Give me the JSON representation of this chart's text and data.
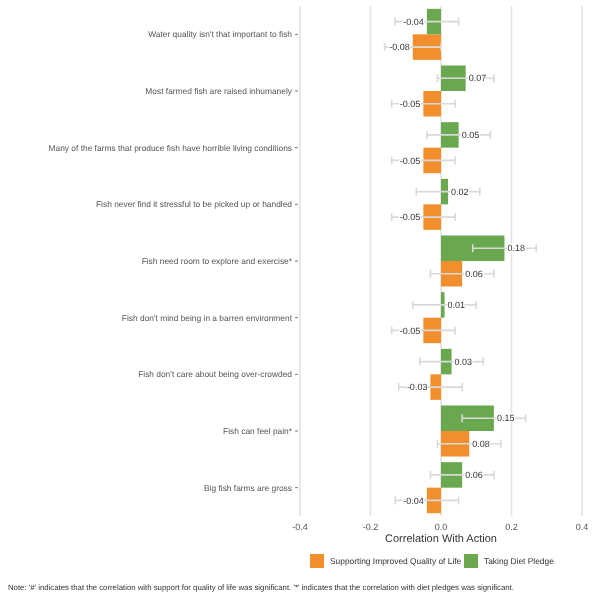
{
  "chart_data": {
    "type": "bar",
    "orientation": "horizontal",
    "categories": [
      "Water quality isn't that important to fish",
      "Most farmed fish are raised inhumanely",
      "Many of the farms that produce fish have horrible living conditions",
      "Fish never find it stressful to be picked up or handled",
      "Fish need room to explore and exercise*",
      "Fish don't mind being in a barren environment",
      "Fish don't care about being over-crowded",
      "Fish can feel pain*",
      "Big fish farms are gross"
    ],
    "series": [
      {
        "name": "Supporting Improved Quality of Life",
        "color": "#f28e2b",
        "values": [
          -0.08,
          -0.05,
          -0.05,
          -0.05,
          0.06,
          -0.05,
          -0.03,
          0.08,
          -0.04
        ],
        "errors": [
          0.08,
          0.09,
          0.09,
          0.09,
          0.09,
          0.09,
          0.09,
          0.09,
          0.09
        ]
      },
      {
        "name": "Taking Diet Pledge",
        "color": "#6aa84f",
        "values": [
          -0.04,
          0.07,
          0.05,
          0.02,
          0.18,
          0.01,
          0.03,
          0.15,
          0.06
        ],
        "errors": [
          0.09,
          0.08,
          0.09,
          0.09,
          0.09,
          0.09,
          0.09,
          0.09,
          0.09
        ]
      }
    ],
    "xlabel": "Correlation With Action",
    "xlim": [
      -0.4,
      0.4
    ],
    "xticks": [
      {
        "value": -0.4,
        "label": "-0.4"
      },
      {
        "value": -0.2,
        "label": "-0.2"
      },
      {
        "value": 0,
        "label": "0.0"
      },
      {
        "value": 0.2,
        "label": "0.2"
      },
      {
        "value": 0.4,
        "label": "0.4"
      }
    ],
    "grid": "x",
    "legend": "bottom",
    "data_labels": true,
    "annotations": [
      "Note: '#' indicates that the correlation with support for quality of life was significant. '*' indicates that the correlation with diet pledges was significant."
    ]
  }
}
